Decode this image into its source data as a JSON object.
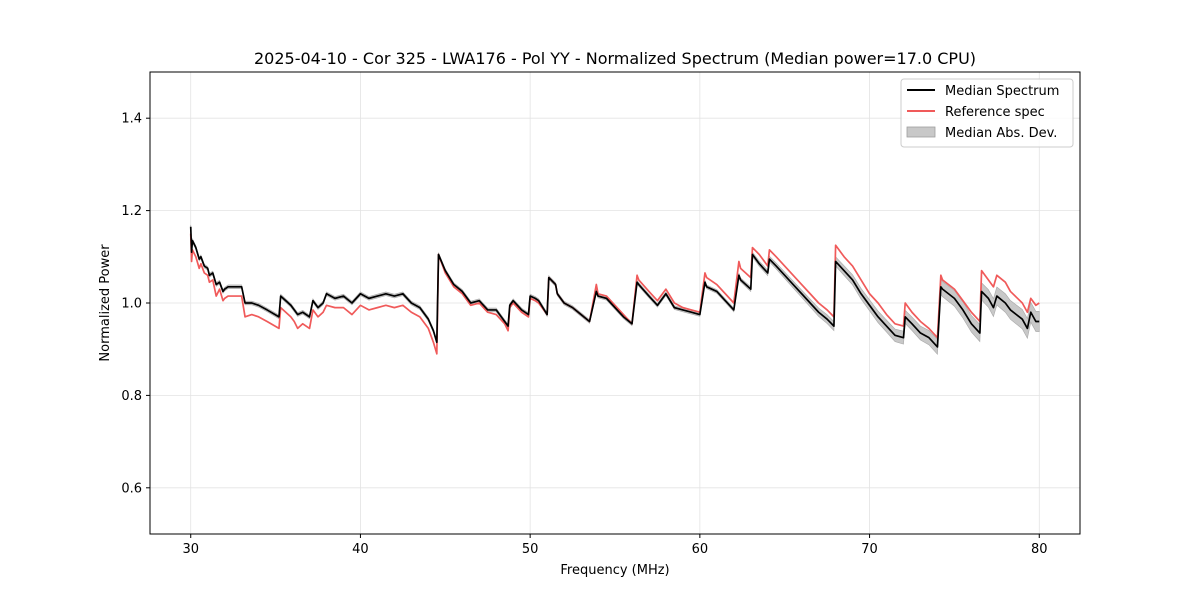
{
  "chart_data": {
    "type": "line",
    "title": "2025-04-10 - Cor 325 - LWA176 - Pol YY - Normalized Spectrum (Median power=17.0 CPU)",
    "xlabel": "Frequency (MHz)",
    "ylabel": "Normalized Power",
    "xlim": [
      27.6,
      82.4
    ],
    "ylim": [
      0.5,
      1.5
    ],
    "xticks": [
      30,
      40,
      50,
      60,
      70,
      80
    ],
    "yticks": [
      0.6,
      0.8,
      1.0,
      1.2,
      1.4
    ],
    "grid": true,
    "legend_position": "top-right",
    "legend": [
      "Median Spectrum",
      "Reference spec",
      "Median Abs. Dev."
    ],
    "colors": {
      "median": "#000000",
      "reference": "#f05a5a",
      "mad": "#c8c8c8"
    },
    "series": [
      {
        "name": "Median Spectrum",
        "x": [
          30.0,
          30.05,
          30.1,
          30.3,
          30.5,
          30.6,
          30.8,
          31.0,
          31.1,
          31.3,
          31.5,
          31.7,
          31.9,
          32.0,
          32.2,
          32.5,
          33.0,
          33.2,
          33.6,
          34.0,
          34.5,
          35.2,
          35.3,
          35.6,
          35.9,
          36.1,
          36.3,
          36.6,
          37.0,
          37.2,
          37.5,
          37.8,
          38.0,
          38.5,
          39.0,
          39.5,
          40.0,
          40.5,
          41.0,
          41.5,
          42.0,
          42.5,
          43.0,
          43.5,
          44.0,
          44.3,
          44.5,
          44.6,
          45.0,
          45.5,
          46.0,
          46.5,
          47.0,
          47.5,
          48.0,
          48.5,
          48.7,
          48.8,
          49.0,
          49.5,
          49.9,
          50.0,
          50.3,
          50.5,
          51.0,
          51.1,
          51.5,
          51.6,
          52.0,
          52.5,
          53.0,
          53.5,
          53.9,
          54.0,
          54.5,
          55.0,
          55.5,
          56.0,
          56.3,
          56.4,
          57.0,
          57.5,
          58.0,
          58.5,
          59.0,
          59.5,
          60.0,
          60.3,
          60.4,
          61.0,
          61.5,
          62.0,
          62.3,
          62.4,
          63.0,
          63.1,
          63.5,
          64.0,
          64.1,
          64.5,
          65.0,
          65.5,
          66.0,
          66.5,
          67.0,
          67.5,
          67.9,
          68.0,
          68.5,
          69.0,
          69.5,
          70.0,
          70.5,
          71.0,
          71.5,
          72.0,
          72.1,
          72.5,
          73.0,
          73.5,
          74.0,
          74.2,
          74.3,
          75.0,
          75.5,
          76.0,
          76.5,
          76.6,
          77.0,
          77.3,
          77.5,
          78.0,
          78.3,
          79.0,
          79.3,
          79.5,
          79.8,
          80.0
        ],
        "values": [
          1.165,
          1.11,
          1.135,
          1.12,
          1.095,
          1.1,
          1.08,
          1.075,
          1.06,
          1.065,
          1.04,
          1.045,
          1.025,
          1.03,
          1.035,
          1.035,
          1.035,
          1.0,
          1.0,
          0.995,
          0.985,
          0.97,
          1.015,
          1.005,
          0.995,
          0.985,
          0.975,
          0.98,
          0.97,
          1.005,
          0.99,
          1.0,
          1.02,
          1.01,
          1.015,
          1.0,
          1.02,
          1.01,
          1.015,
          1.02,
          1.015,
          1.02,
          1.0,
          0.99,
          0.965,
          0.94,
          0.915,
          1.105,
          1.07,
          1.04,
          1.025,
          1.0,
          1.005,
          0.985,
          0.985,
          0.96,
          0.95,
          0.995,
          1.005,
          0.985,
          0.975,
          1.015,
          1.01,
          1.005,
          0.975,
          1.055,
          1.04,
          1.02,
          1.0,
          0.99,
          0.975,
          0.96,
          1.025,
          1.015,
          1.01,
          0.99,
          0.97,
          0.955,
          1.045,
          1.04,
          1.015,
          0.995,
          1.02,
          0.99,
          0.985,
          0.98,
          0.975,
          1.045,
          1.035,
          1.025,
          1.005,
          0.985,
          1.06,
          1.05,
          1.03,
          1.105,
          1.085,
          1.065,
          1.095,
          1.08,
          1.06,
          1.04,
          1.02,
          1.0,
          0.98,
          0.965,
          0.95,
          1.09,
          1.07,
          1.05,
          1.02,
          0.995,
          0.97,
          0.95,
          0.93,
          0.925,
          0.97,
          0.955,
          0.935,
          0.925,
          0.905,
          1.035,
          1.03,
          1.01,
          0.985,
          0.955,
          0.935,
          1.025,
          1.01,
          0.99,
          1.015,
          1.0,
          0.985,
          0.965,
          0.945,
          0.98,
          0.96,
          0.96
        ]
      },
      {
        "name": "Reference spec",
        "x": [
          30.0,
          30.05,
          30.1,
          30.3,
          30.5,
          30.6,
          30.8,
          31.0,
          31.1,
          31.3,
          31.5,
          31.7,
          31.9,
          32.0,
          32.2,
          32.5,
          33.0,
          33.2,
          33.6,
          34.0,
          34.5,
          35.2,
          35.3,
          35.6,
          35.9,
          36.1,
          36.3,
          36.6,
          37.0,
          37.2,
          37.5,
          37.8,
          38.0,
          38.5,
          39.0,
          39.5,
          40.0,
          40.5,
          41.0,
          41.5,
          42.0,
          42.5,
          43.0,
          43.5,
          44.0,
          44.3,
          44.5,
          44.6,
          45.0,
          45.5,
          46.0,
          46.5,
          47.0,
          47.5,
          48.0,
          48.5,
          48.7,
          48.8,
          49.0,
          49.5,
          49.9,
          50.0,
          50.3,
          50.5,
          51.0,
          51.1,
          51.5,
          51.6,
          52.0,
          52.5,
          53.0,
          53.5,
          53.9,
          54.0,
          54.5,
          55.0,
          55.5,
          56.0,
          56.3,
          56.4,
          57.0,
          57.5,
          58.0,
          58.5,
          59.0,
          59.5,
          60.0,
          60.3,
          60.4,
          61.0,
          61.5,
          62.0,
          62.3,
          62.4,
          63.0,
          63.1,
          63.5,
          64.0,
          64.1,
          64.5,
          65.0,
          65.5,
          66.0,
          66.5,
          67.0,
          67.5,
          67.9,
          68.0,
          68.5,
          69.0,
          69.5,
          70.0,
          70.5,
          71.0,
          71.5,
          72.0,
          72.1,
          72.5,
          73.0,
          73.5,
          74.0,
          74.2,
          74.3,
          75.0,
          75.5,
          76.0,
          76.5,
          76.6,
          77.0,
          77.3,
          77.5,
          78.0,
          78.3,
          79.0,
          79.3,
          79.5,
          79.8,
          80.0
        ],
        "values": [
          1.15,
          1.09,
          1.115,
          1.1,
          1.075,
          1.085,
          1.065,
          1.06,
          1.045,
          1.05,
          1.015,
          1.03,
          1.005,
          1.01,
          1.015,
          1.015,
          1.015,
          0.97,
          0.975,
          0.97,
          0.96,
          0.945,
          0.99,
          0.98,
          0.97,
          0.96,
          0.945,
          0.955,
          0.945,
          0.985,
          0.97,
          0.98,
          0.995,
          0.99,
          0.99,
          0.975,
          0.995,
          0.985,
          0.99,
          0.995,
          0.99,
          0.995,
          0.98,
          0.97,
          0.945,
          0.915,
          0.89,
          1.105,
          1.065,
          1.035,
          1.02,
          0.995,
          1.0,
          0.98,
          0.975,
          0.955,
          0.94,
          0.99,
          1.0,
          0.98,
          0.97,
          1.01,
          1.005,
          1.0,
          0.975,
          1.055,
          1.04,
          1.02,
          1.0,
          0.99,
          0.975,
          0.96,
          1.04,
          1.02,
          1.015,
          0.995,
          0.975,
          0.955,
          1.06,
          1.05,
          1.025,
          1.005,
          1.03,
          1.0,
          0.99,
          0.985,
          0.98,
          1.065,
          1.055,
          1.04,
          1.02,
          1.0,
          1.09,
          1.075,
          1.055,
          1.12,
          1.105,
          1.08,
          1.115,
          1.1,
          1.08,
          1.06,
          1.04,
          1.02,
          1.0,
          0.985,
          0.97,
          1.125,
          1.1,
          1.08,
          1.05,
          1.02,
          1.0,
          0.975,
          0.955,
          0.95,
          1.0,
          0.98,
          0.96,
          0.945,
          0.925,
          1.06,
          1.05,
          1.03,
          1.005,
          0.98,
          0.96,
          1.07,
          1.05,
          1.035,
          1.06,
          1.045,
          1.025,
          1.0,
          0.98,
          1.01,
          0.995,
          1.0
        ]
      }
    ]
  }
}
